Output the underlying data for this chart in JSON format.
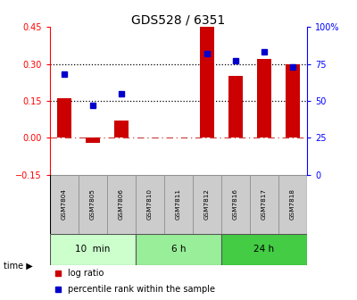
{
  "title": "GDS528 / 6351",
  "samples": [
    "GSM7804",
    "GSM7805",
    "GSM7806",
    "GSM7810",
    "GSM7811",
    "GSM7812",
    "GSM7816",
    "GSM7817",
    "GSM7818"
  ],
  "log_ratio": [
    0.16,
    -0.02,
    0.07,
    0.0,
    0.0,
    0.45,
    0.25,
    0.32,
    0.3
  ],
  "percentile_rank": [
    68,
    47,
    55,
    null,
    null,
    82,
    77,
    83,
    73
  ],
  "groups": [
    {
      "label": "10  min",
      "start": 0,
      "end": 3,
      "color": "#ccffcc"
    },
    {
      "label": "6 h",
      "start": 3,
      "end": 6,
      "color": "#99ee99"
    },
    {
      "label": "24 h",
      "start": 6,
      "end": 9,
      "color": "#44cc44"
    }
  ],
  "bar_color": "#cc0000",
  "dot_color": "#0000cc",
  "ylim_left": [
    -0.15,
    0.45
  ],
  "ylim_right": [
    0,
    100
  ],
  "yticks_left": [
    -0.15,
    0.0,
    0.15,
    0.3,
    0.45
  ],
  "yticks_right": [
    0,
    25,
    50,
    75,
    100
  ],
  "ytick_labels_right": [
    "0",
    "25",
    "50",
    "75",
    "100%"
  ],
  "hlines": [
    0.15,
    0.3
  ],
  "zero_line": 0.0,
  "bar_width": 0.5,
  "legend_items": [
    "log ratio",
    "percentile rank within the sample"
  ],
  "legend_colors": [
    "#cc0000",
    "#0000cc"
  ],
  "group_border_color": "#555555",
  "sample_box_color": "#cccccc",
  "sample_box_edge": "#888888"
}
